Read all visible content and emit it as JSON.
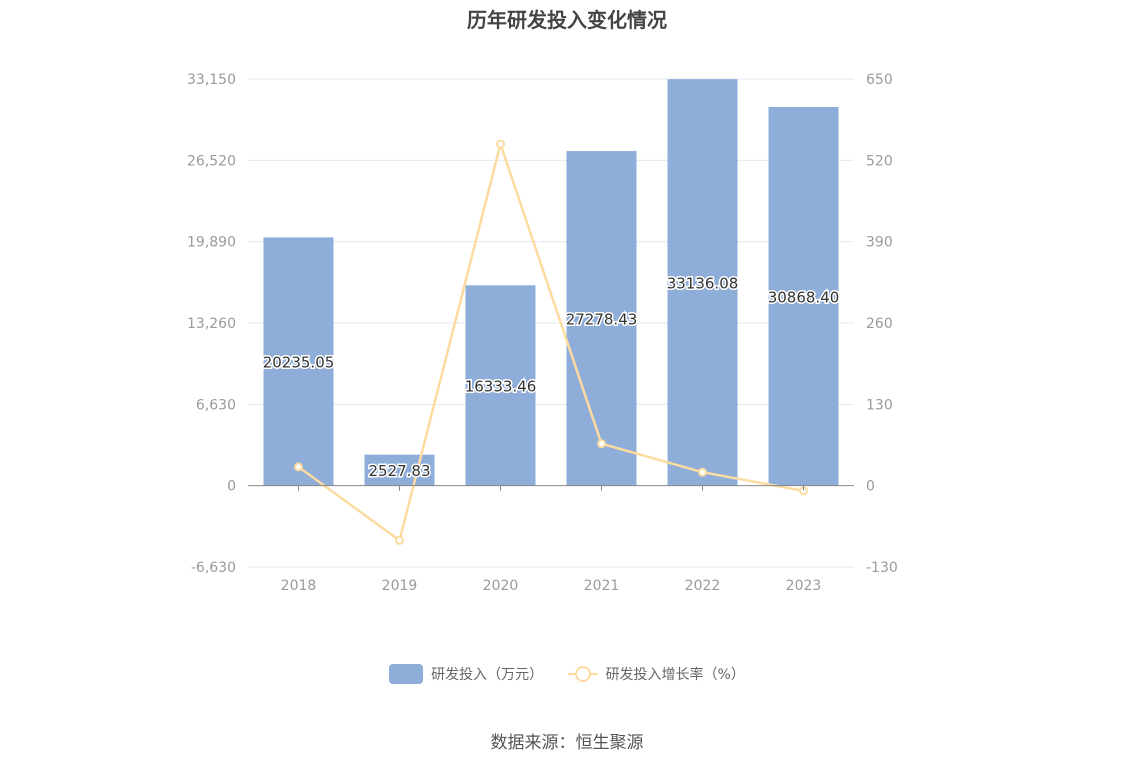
{
  "title": "历年研发投入变化情况",
  "source": "数据来源：恒生聚源",
  "legend": {
    "bar_label": "研发投入（万元）",
    "line_label": "研发投入增长率（%）"
  },
  "colors": {
    "bar": "#8eadd9",
    "line": "#fcdba0",
    "grid": "#e4e7f2",
    "axis": "#888888"
  },
  "chart_data": {
    "type": "bar",
    "title": "历年研发投入变化情况",
    "categories": [
      "2018",
      "2019",
      "2020",
      "2021",
      "2022",
      "2023"
    ],
    "series": [
      {
        "name": "研发投入（万元）",
        "type": "bar",
        "axis": "left",
        "values": [
          20235.05,
          2527.83,
          16333.46,
          27278.43,
          33136.08,
          30868.4
        ],
        "labels": [
          "20235.05",
          "2527.83",
          "16333.46",
          "27278.43",
          "33136.08",
          "30868.40"
        ]
      },
      {
        "name": "研发投入增长率（%）",
        "type": "line",
        "axis": "right",
        "values": [
          30,
          -87.5,
          546,
          67,
          21.5,
          -8.3
        ]
      }
    ],
    "y_left": {
      "ylim": [
        -6630,
        33150
      ],
      "ticks": [
        -6630,
        0,
        6630,
        13260,
        19890,
        26520,
        33150
      ],
      "tick_labels": [
        "-6,630",
        "0",
        "6,630",
        "13,260",
        "19,890",
        "26,520",
        "33,150"
      ]
    },
    "y_right": {
      "ylim": [
        -130,
        650
      ],
      "ticks": [
        -130,
        0,
        130,
        260,
        390,
        520,
        650
      ],
      "tick_labels": [
        "-130",
        "0",
        "130",
        "260",
        "390",
        "520",
        "650"
      ]
    },
    "grid": true,
    "legend_position": "bottom-center"
  }
}
